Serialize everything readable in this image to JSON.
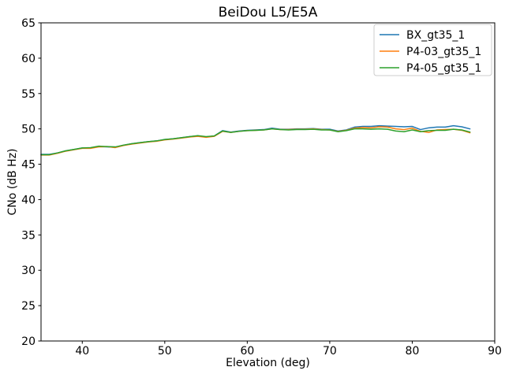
{
  "figure": {
    "background": "#ffffff",
    "frame_color": "#000000",
    "legend_border_color": "#cccccc"
  },
  "chart_data": {
    "type": "line",
    "title": "BeiDou L5/E5A",
    "xlabel": "Elevation (deg)",
    "ylabel": "CNo (dB Hz)",
    "xlim": [
      35,
      90
    ],
    "ylim": [
      20,
      65
    ],
    "xticks": [
      40,
      50,
      60,
      70,
      80,
      90
    ],
    "yticks": [
      20,
      25,
      30,
      35,
      40,
      45,
      50,
      55,
      60,
      65
    ],
    "grid": false,
    "legend_position": "upper right",
    "x": [
      35,
      36,
      37,
      38,
      39,
      40,
      41,
      42,
      43,
      44,
      45,
      46,
      47,
      48,
      49,
      50,
      51,
      52,
      53,
      54,
      55,
      56,
      57,
      58,
      59,
      60,
      61,
      62,
      63,
      64,
      65,
      66,
      67,
      68,
      69,
      70,
      71,
      72,
      73,
      74,
      75,
      76,
      77,
      78,
      79,
      80,
      81,
      82,
      83,
      84,
      85,
      86,
      87
    ],
    "series": [
      {
        "name": "BX_gt35_1",
        "color": "#1f77b4",
        "values": [
          46.4,
          46.4,
          46.6,
          46.9,
          47.1,
          47.3,
          47.3,
          47.5,
          47.45,
          47.4,
          47.7,
          47.9,
          48.05,
          48.2,
          48.3,
          48.5,
          48.6,
          48.75,
          48.9,
          49.0,
          48.85,
          49.0,
          49.75,
          49.55,
          49.7,
          49.8,
          49.85,
          49.9,
          50.1,
          49.95,
          49.95,
          50.0,
          50.0,
          50.05,
          49.95,
          49.95,
          49.7,
          49.85,
          50.25,
          50.35,
          50.35,
          50.45,
          50.4,
          50.35,
          50.3,
          50.35,
          49.9,
          50.15,
          50.25,
          50.25,
          50.45,
          50.3,
          50.0
        ]
      },
      {
        "name": "P4-03_gt35_1",
        "color": "#ff7f0e",
        "values": [
          46.3,
          46.3,
          46.55,
          46.85,
          47.05,
          47.25,
          47.25,
          47.45,
          47.5,
          47.35,
          47.65,
          47.85,
          48.0,
          48.15,
          48.25,
          48.45,
          48.55,
          48.7,
          48.85,
          48.95,
          48.8,
          48.95,
          49.65,
          49.5,
          49.65,
          49.75,
          49.8,
          49.85,
          50.0,
          49.9,
          49.9,
          49.95,
          49.95,
          50.0,
          49.9,
          49.85,
          49.65,
          49.8,
          50.1,
          50.2,
          50.15,
          50.3,
          50.25,
          50.0,
          49.9,
          50.1,
          49.65,
          49.5,
          49.85,
          49.9,
          49.95,
          49.8,
          49.45
        ]
      },
      {
        "name": "P4-05_gt35_1",
        "color": "#2ca02c",
        "values": [
          46.35,
          46.35,
          46.6,
          46.9,
          47.1,
          47.3,
          47.35,
          47.55,
          47.5,
          47.45,
          47.7,
          47.9,
          48.05,
          48.2,
          48.3,
          48.5,
          48.6,
          48.75,
          48.9,
          49.05,
          48.9,
          49.0,
          49.7,
          49.5,
          49.65,
          49.75,
          49.8,
          49.85,
          50.0,
          49.9,
          49.85,
          49.9,
          49.9,
          49.95,
          49.85,
          49.85,
          49.6,
          49.75,
          50.0,
          50.0,
          49.95,
          50.0,
          49.95,
          49.7,
          49.6,
          49.85,
          49.6,
          49.75,
          49.8,
          49.8,
          49.95,
          49.85,
          49.55
        ]
      }
    ]
  }
}
